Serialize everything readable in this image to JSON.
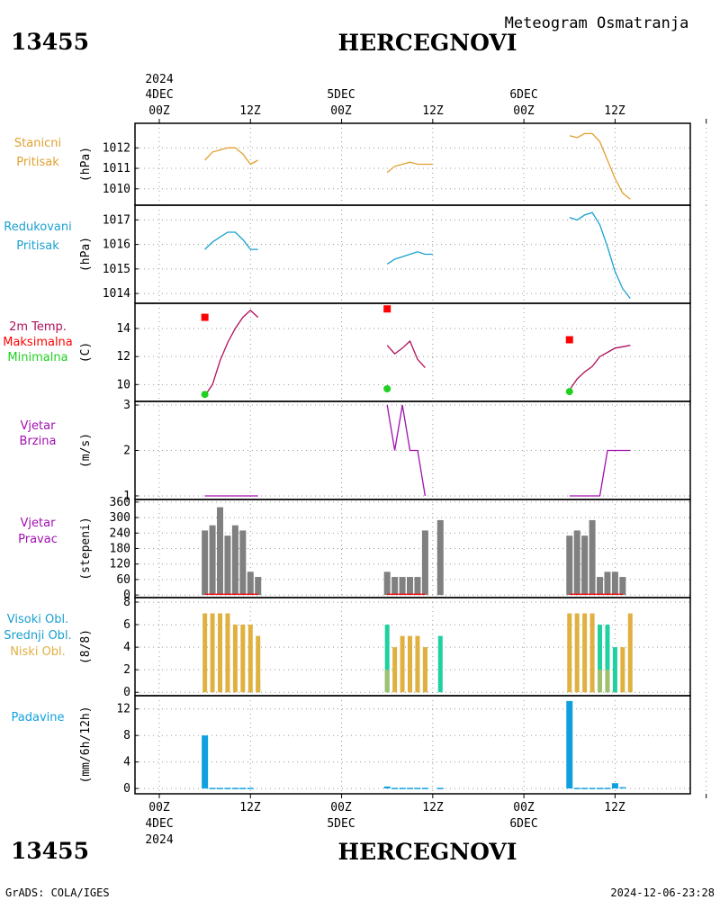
{
  "header": {
    "station_id": "13455",
    "station_name": "HERCEGNOVI",
    "product": "Meteogram Osmatranja"
  },
  "footer": {
    "credit": "GrADS: COLA/IGES",
    "timestamp": "2024-12-06-23:28"
  },
  "time_axis": {
    "year": "2024",
    "days": [
      "4DEC",
      "5DEC",
      "6DEC"
    ],
    "hour_labels": [
      "00Z",
      "12Z",
      "00Z",
      "12Z",
      "00Z",
      "12Z"
    ]
  },
  "colors": {
    "pressure": "#e0a030",
    "reduced": "#1aa0d0",
    "temp_line": "#b0105a",
    "temp_max": "#ff0000",
    "temp_min": "#20d020",
    "wind_speed": "#a010b0",
    "wind_dir_bar": "#808080",
    "wind_dir_line": "#ff0000",
    "cloud_high": "#20d0a0",
    "cloud_mid": "#a0c070",
    "cloud_low": "#e0b040",
    "precip": "#10a0e0"
  },
  "panels": {
    "pressure": {
      "label_lines": [
        "Stanicni",
        "Pritisak"
      ],
      "unit": "(hPa)"
    },
    "reduced": {
      "label_lines": [
        "Redukovani",
        "Pritisak"
      ],
      "unit": "(hPa)"
    },
    "temp": {
      "label_lines": [
        "2m Temp.",
        "Maksimalna",
        "Minimalna"
      ],
      "unit": "(C)"
    },
    "wind_speed": {
      "label_lines": [
        "Vjetar",
        "Brzina"
      ],
      "unit": "(m/s)"
    },
    "wind_dir": {
      "label_lines": [
        "Vjetar",
        "Pravac"
      ],
      "unit": "(stepeni)"
    },
    "clouds": {
      "label_lines": [
        "Visoki Obl.",
        "Srednji Obl.",
        "Niski Obl."
      ],
      "unit": "(8/8)"
    },
    "precip": {
      "label_lines": [
        "Padavine"
      ],
      "unit": "(mm/6h/12h)"
    }
  },
  "chart_data": [
    {
      "type": "line",
      "name": "Stanicni Pritisak",
      "ylabel": "(hPa)",
      "ylim": [
        1009.2,
        1013.2
      ],
      "yticks": [
        1010,
        1011,
        1012
      ],
      "grid": true,
      "segments": [
        {
          "x": [
            6,
            7,
            8,
            9,
            10,
            11,
            12,
            13
          ],
          "y": [
            1011.4,
            1011.8,
            1011.9,
            1012.0,
            1012.0,
            1011.7,
            1011.2,
            1011.4
          ]
        },
        {
          "x": [
            30,
            31,
            32,
            33,
            34,
            35,
            36
          ],
          "y": [
            1010.8,
            1011.1,
            1011.2,
            1011.3,
            1011.2,
            1011.2,
            1011.2
          ]
        },
        {
          "x": [
            54,
            55,
            56,
            57,
            58,
            59,
            60,
            61,
            62
          ],
          "y": [
            1012.6,
            1012.5,
            1012.7,
            1012.7,
            1012.3,
            1011.4,
            1010.5,
            1009.8,
            1009.5
          ]
        }
      ]
    },
    {
      "type": "line",
      "name": "Redukovani Pritisak",
      "ylabel": "(hPa)",
      "ylim": [
        1013.6,
        1017.6
      ],
      "yticks": [
        1014,
        1015,
        1016,
        1017
      ],
      "grid": true,
      "segments": [
        {
          "x": [
            6,
            7,
            8,
            9,
            10,
            11,
            12,
            13
          ],
          "y": [
            1015.8,
            1016.1,
            1016.3,
            1016.5,
            1016.5,
            1016.2,
            1015.8,
            1015.8
          ]
        },
        {
          "x": [
            30,
            31,
            32,
            33,
            34,
            35,
            36
          ],
          "y": [
            1015.2,
            1015.4,
            1015.5,
            1015.6,
            1015.7,
            1015.6,
            1015.6
          ]
        },
        {
          "x": [
            54,
            55,
            56,
            57,
            58,
            59,
            60,
            61,
            62
          ],
          "y": [
            1017.1,
            1017.0,
            1017.2,
            1017.3,
            1016.8,
            1015.9,
            1014.9,
            1014.2,
            1013.8
          ]
        }
      ]
    },
    {
      "type": "line",
      "name": "2m Temp.",
      "ylabel": "(C)",
      "ylim": [
        8.8,
        15.8
      ],
      "yticks": [
        10,
        12,
        14
      ],
      "grid": true,
      "segments": [
        {
          "x": [
            6,
            7,
            8,
            9,
            10,
            11,
            12,
            13
          ],
          "y": [
            9.2,
            10.0,
            11.7,
            13.0,
            14.0,
            14.8,
            15.3,
            14.8
          ]
        },
        {
          "x": [
            30,
            31,
            32,
            33,
            34,
            35
          ],
          "y": [
            12.8,
            12.2,
            12.6,
            13.1,
            11.8,
            11.2
          ]
        },
        {
          "x": [
            54,
            55,
            56,
            57,
            58,
            59,
            60,
            61,
            62
          ],
          "y": [
            9.6,
            10.4,
            10.9,
            11.3,
            12.0,
            12.3,
            12.6,
            12.7,
            12.8
          ]
        }
      ],
      "max_markers": [
        {
          "x": 6,
          "y": 14.8
        },
        {
          "x": 30,
          "y": 15.4
        },
        {
          "x": 54,
          "y": 13.2
        }
      ],
      "min_markers": [
        {
          "x": 6,
          "y": 9.3
        },
        {
          "x": 30,
          "y": 9.7
        },
        {
          "x": 54,
          "y": 9.5
        }
      ]
    },
    {
      "type": "line",
      "name": "Vjetar Brzina",
      "ylabel": "(m/s)",
      "ylim": [
        0.92,
        3.08
      ],
      "yticks": [
        1,
        2,
        3
      ],
      "grid": true,
      "segments": [
        {
          "x": [
            6,
            7,
            8,
            9,
            10,
            11,
            12,
            13
          ],
          "y": [
            1,
            1,
            1,
            1,
            1,
            1,
            1,
            1
          ]
        },
        {
          "x": [
            30,
            31,
            32,
            33,
            34,
            35
          ],
          "y": [
            3,
            2,
            3,
            2,
            2,
            1
          ]
        },
        {
          "x": [
            54,
            55,
            56,
            57,
            58,
            59,
            60,
            61,
            62
          ],
          "y": [
            1,
            1,
            1,
            1,
            1,
            2,
            2,
            2,
            2
          ]
        }
      ]
    },
    {
      "type": "bar",
      "name": "Vjetar Pravac",
      "ylabel": "(stepeni)",
      "ylim": [
        -10,
        370
      ],
      "yticks": [
        0,
        60,
        120,
        180,
        240,
        300,
        360
      ],
      "grid": true,
      "bars": [
        {
          "x": 6,
          "value": 250
        },
        {
          "x": 7,
          "value": 270
        },
        {
          "x": 8,
          "value": 340
        },
        {
          "x": 9,
          "value": 230
        },
        {
          "x": 10,
          "value": 270
        },
        {
          "x": 11,
          "value": 250
        },
        {
          "x": 12,
          "value": 90
        },
        {
          "x": 13,
          "value": 70
        },
        {
          "x": 30,
          "value": 90
        },
        {
          "x": 31,
          "value": 70
        },
        {
          "x": 32,
          "value": 70
        },
        {
          "x": 33,
          "value": 70
        },
        {
          "x": 34,
          "value": 70
        },
        {
          "x": 35,
          "value": 250
        },
        {
          "x": 37,
          "value": 290
        },
        {
          "x": 54,
          "value": 230
        },
        {
          "x": 55,
          "value": 250
        },
        {
          "x": 56,
          "value": 230
        },
        {
          "x": 57,
          "value": 290
        },
        {
          "x": 58,
          "value": 70
        },
        {
          "x": 59,
          "value": 90
        },
        {
          "x": 60,
          "value": 90
        },
        {
          "x": 61,
          "value": 70
        }
      ],
      "calm_line_segments": [
        {
          "x": [
            6,
            13
          ]
        },
        {
          "x": [
            30,
            35
          ]
        },
        {
          "x": [
            54,
            61
          ]
        }
      ]
    },
    {
      "type": "bar",
      "name": "Oblacnost",
      "ylabel": "(8/8)",
      "ylim": [
        -0.3,
        8.4
      ],
      "yticks": [
        0,
        2,
        4,
        6,
        8
      ],
      "grid": true,
      "series": [
        {
          "name": "Visoki Obl.",
          "bars": [
            {
              "x": 30,
              "value": 6
            },
            {
              "x": 37,
              "value": 5
            },
            {
              "x": 58,
              "value": 6
            },
            {
              "x": 59,
              "value": 6
            },
            {
              "x": 60,
              "value": 4
            }
          ]
        },
        {
          "name": "Srednji Obl.",
          "bars": [
            {
              "x": 13,
              "value": 1
            },
            {
              "x": 30,
              "value": 2
            },
            {
              "x": 33,
              "value": 3
            },
            {
              "x": 34,
              "value": 3
            },
            {
              "x": 35,
              "value": 4
            },
            {
              "x": 58,
              "value": 2
            },
            {
              "x": 59,
              "value": 2
            }
          ]
        },
        {
          "name": "Niski Obl.",
          "bars": [
            {
              "x": 6,
              "value": 7
            },
            {
              "x": 7,
              "value": 7
            },
            {
              "x": 8,
              "value": 7
            },
            {
              "x": 9,
              "value": 7
            },
            {
              "x": 10,
              "value": 6
            },
            {
              "x": 11,
              "value": 6
            },
            {
              "x": 12,
              "value": 6
            },
            {
              "x": 13,
              "value": 5
            },
            {
              "x": 31,
              "value": 4
            },
            {
              "x": 32,
              "value": 5
            },
            {
              "x": 33,
              "value": 5
            },
            {
              "x": 34,
              "value": 5
            },
            {
              "x": 35,
              "value": 4
            },
            {
              "x": 54,
              "value": 7
            },
            {
              "x": 55,
              "value": 7
            },
            {
              "x": 56,
              "value": 7
            },
            {
              "x": 57,
              "value": 7
            },
            {
              "x": 61,
              "value": 4
            },
            {
              "x": 62,
              "value": 7
            }
          ]
        }
      ]
    },
    {
      "type": "bar",
      "name": "Padavine",
      "ylabel": "(mm/6h/12h)",
      "ylim": [
        -0.8,
        14.0
      ],
      "yticks": [
        0,
        4,
        8,
        12
      ],
      "grid": true,
      "bars": [
        {
          "x": 6,
          "value": 8.0
        },
        {
          "x": 7,
          "value": 0.1
        },
        {
          "x": 8,
          "value": 0.1
        },
        {
          "x": 9,
          "value": 0.1
        },
        {
          "x": 10,
          "value": 0.1
        },
        {
          "x": 11,
          "value": 0.1
        },
        {
          "x": 12,
          "value": 0.1
        },
        {
          "x": 30,
          "value": 0.3
        },
        {
          "x": 31,
          "value": 0.1
        },
        {
          "x": 32,
          "value": 0.1
        },
        {
          "x": 33,
          "value": 0.1
        },
        {
          "x": 34,
          "value": 0.1
        },
        {
          "x": 35,
          "value": 0.1
        },
        {
          "x": 37,
          "value": 0.1
        },
        {
          "x": 54,
          "value": 13.2
        },
        {
          "x": 55,
          "value": 0.1
        },
        {
          "x": 56,
          "value": 0.1
        },
        {
          "x": 57,
          "value": 0.1
        },
        {
          "x": 58,
          "value": 0.1
        },
        {
          "x": 59,
          "value": 0.1
        },
        {
          "x": 60,
          "value": 0.8
        },
        {
          "x": 61,
          "value": 0.2
        }
      ]
    }
  ]
}
